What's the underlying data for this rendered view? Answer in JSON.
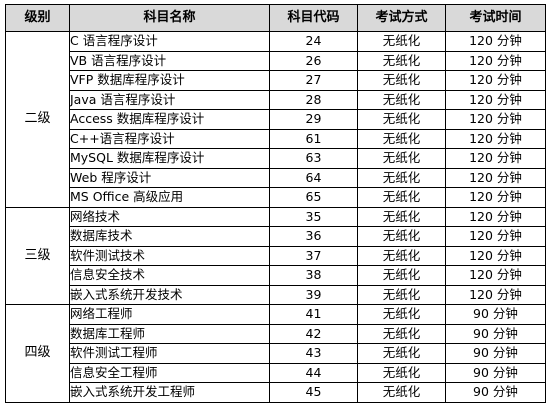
{
  "headers": {
    "level": "级别",
    "name": "科目名称",
    "code": "科目代码",
    "method": "考试方式",
    "time": "考试时间"
  },
  "groups": [
    {
      "level": "二级",
      "rows": [
        {
          "name": "C 语言程序设计",
          "code": "24",
          "method": "无纸化",
          "time": "120 分钟"
        },
        {
          "name": "VB 语言程序设计",
          "code": "26",
          "method": "无纸化",
          "time": "120 分钟"
        },
        {
          "name": "VFP 数据库程序设计",
          "code": "27",
          "method": "无纸化",
          "time": "120 分钟"
        },
        {
          "name": "Java 语言程序设计",
          "code": "28",
          "method": "无纸化",
          "time": "120 分钟"
        },
        {
          "name": "Access 数据库程序设计",
          "code": "29",
          "method": "无纸化",
          "time": "120 分钟"
        },
        {
          "name": "C++语言程序设计",
          "code": "61",
          "method": "无纸化",
          "time": "120 分钟"
        },
        {
          "name": "MySQL 数据库程序设计",
          "code": "63",
          "method": "无纸化",
          "time": "120 分钟"
        },
        {
          "name": "Web 程序设计",
          "code": "64",
          "method": "无纸化",
          "time": "120 分钟"
        },
        {
          "name": "MS Office 高级应用",
          "code": "65",
          "method": "无纸化",
          "time": "120 分钟"
        }
      ]
    },
    {
      "level": "三级",
      "rows": [
        {
          "name": "网络技术",
          "code": "35",
          "method": "无纸化",
          "time": "120 分钟"
        },
        {
          "name": "数据库技术",
          "code": "36",
          "method": "无纸化",
          "time": "120 分钟"
        },
        {
          "name": "软件测试技术",
          "code": "37",
          "method": "无纸化",
          "time": "120 分钟"
        },
        {
          "name": "信息安全技术",
          "code": "38",
          "method": "无纸化",
          "time": "120 分钟"
        },
        {
          "name": "嵌入式系统开发技术",
          "code": "39",
          "method": "无纸化",
          "time": "120 分钟"
        }
      ]
    },
    {
      "level": "四级",
      "rows": [
        {
          "name": "网络工程师",
          "code": "41",
          "method": "无纸化",
          "time": "90 分钟"
        },
        {
          "name": "数据库工程师",
          "code": "42",
          "method": "无纸化",
          "time": "90 分钟"
        },
        {
          "name": "软件测试工程师",
          "code": "43",
          "method": "无纸化",
          "time": "90 分钟"
        },
        {
          "name": "信息安全工程师",
          "code": "44",
          "method": "无纸化",
          "time": "90 分钟"
        },
        {
          "name": "嵌入式系统开发工程师",
          "code": "45",
          "method": "无纸化",
          "time": "90 分钟"
        }
      ]
    }
  ]
}
